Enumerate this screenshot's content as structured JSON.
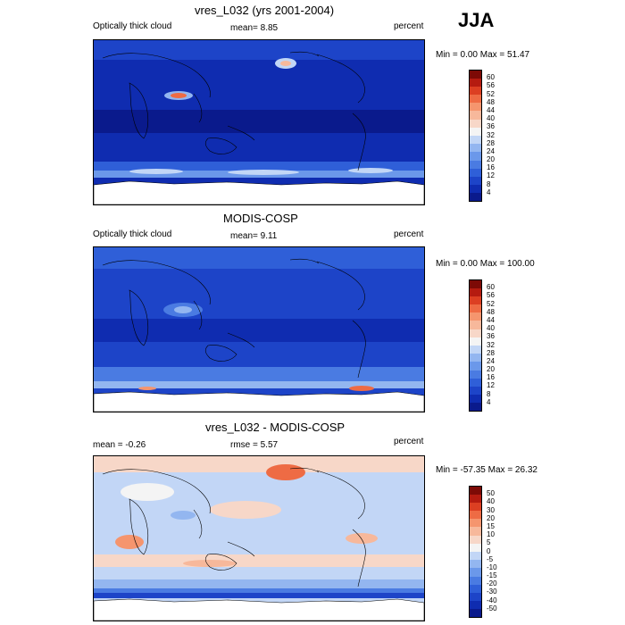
{
  "season": "JJA",
  "panels": [
    {
      "title": "vres_L032 (yrs 2001-2004)",
      "left_label": "Optically thick cloud",
      "center_label": "mean=   8.85",
      "units": "percent",
      "range_label": "Min =   0.00 Max =  51.47",
      "colorbar": {
        "levels": [
          "4",
          "8",
          "12",
          "16",
          "20",
          "24",
          "28",
          "32",
          "36",
          "40",
          "44",
          "48",
          "52",
          "56",
          "60"
        ],
        "colors": [
          "#0a1a8c",
          "#0f2cb0",
          "#1d44c8",
          "#2f5fd8",
          "#4a7be2",
          "#6b98ea",
          "#93b6f0",
          "#c2d6f6",
          "#f4f4f4",
          "#f7d7c8",
          "#f7b89b",
          "#f5956e",
          "#ee6b44",
          "#dc3f22",
          "#b51b10",
          "#7d0a06"
        ]
      }
    },
    {
      "title": "MODIS-COSP",
      "left_label": "Optically thick cloud",
      "center_label": "mean=   9.11",
      "units": "percent",
      "range_label": "Min =   0.00 Max = 100.00",
      "colorbar": {
        "levels": [
          "4",
          "8",
          "12",
          "16",
          "20",
          "24",
          "28",
          "32",
          "36",
          "40",
          "44",
          "48",
          "52",
          "56",
          "60"
        ],
        "colors": [
          "#0a1a8c",
          "#0f2cb0",
          "#1d44c8",
          "#2f5fd8",
          "#4a7be2",
          "#6b98ea",
          "#93b6f0",
          "#c2d6f6",
          "#f4f4f4",
          "#f7d7c8",
          "#f7b89b",
          "#f5956e",
          "#ee6b44",
          "#dc3f22",
          "#b51b10",
          "#7d0a06"
        ]
      }
    },
    {
      "title": "vres_L032 - MODIS-COSP",
      "left_label": "mean =  -0.26",
      "center_label": "rmse =    5.57",
      "units": "percent",
      "range_label": "Min = -57.35 Max =  26.32",
      "colorbar": {
        "levels": [
          "-50",
          "-40",
          "-30",
          "-20",
          "-15",
          "-10",
          "-5",
          "0",
          "5",
          "10",
          "15",
          "20",
          "30",
          "40",
          "50"
        ],
        "colors": [
          "#0a1a8c",
          "#0f2cb0",
          "#1d44c8",
          "#2f5fd8",
          "#4a7be2",
          "#6b98ea",
          "#93b6f0",
          "#c2d6f6",
          "#f4f4f4",
          "#f7d7c8",
          "#f7b89b",
          "#f5956e",
          "#ee6b44",
          "#dc3f22",
          "#b51b10",
          "#7d0a06"
        ]
      }
    }
  ]
}
